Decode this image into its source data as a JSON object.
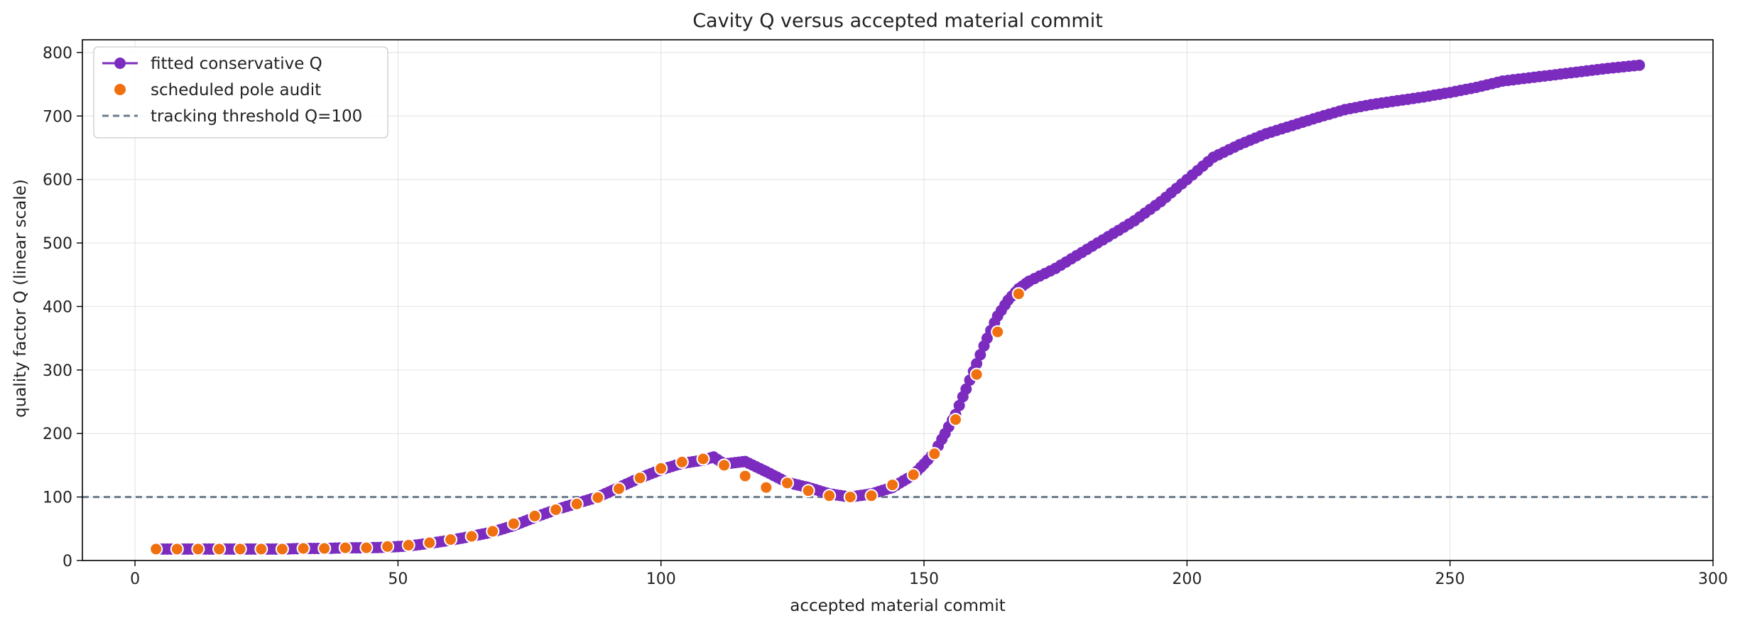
{
  "chart_data": {
    "type": "line",
    "title": "Cavity Q versus accepted material commit",
    "xlabel": "accepted material commit",
    "ylabel": "quality factor Q (linear scale)",
    "xlim": [
      -10,
      300
    ],
    "ylim": [
      0,
      820
    ],
    "x_ticks": [
      0,
      50,
      100,
      150,
      200,
      250,
      300
    ],
    "y_ticks": [
      0,
      100,
      200,
      300,
      400,
      500,
      600,
      700,
      800
    ],
    "grid": true,
    "legend_position": "top-left",
    "colors": {
      "fit": "#7b2cbf",
      "audit": "#f07010",
      "threshold": "#6b7b8c"
    },
    "series": [
      {
        "name": "fitted conservative Q",
        "x": [
          4,
          8,
          12,
          16,
          20,
          24,
          28,
          32,
          36,
          40,
          44,
          48,
          52,
          56,
          60,
          64,
          68,
          72,
          76,
          80,
          84,
          88,
          92,
          96,
          100,
          104,
          108,
          110,
          112,
          116,
          120,
          124,
          128,
          132,
          136,
          140,
          144,
          148,
          150,
          152,
          154,
          156,
          158,
          160,
          162,
          164,
          166,
          168,
          170,
          175,
          180,
          185,
          190,
          195,
          200,
          205,
          210,
          215,
          220,
          225,
          230,
          235,
          240,
          245,
          250,
          255,
          260,
          265,
          270,
          275,
          280,
          286
        ],
        "values": [
          18,
          18,
          18,
          18,
          18,
          18,
          18,
          19,
          19,
          20,
          20,
          21,
          23,
          27,
          32,
          38,
          45,
          55,
          68,
          80,
          90,
          100,
          115,
          130,
          143,
          153,
          158,
          163,
          152,
          156,
          140,
          123,
          115,
          105,
          100,
          105,
          115,
          135,
          152,
          170,
          200,
          230,
          270,
          310,
          350,
          385,
          410,
          428,
          440,
          460,
          485,
          510,
          535,
          565,
          600,
          635,
          655,
          672,
          685,
          698,
          710,
          718,
          724,
          730,
          737,
          745,
          755,
          760,
          765,
          770,
          775,
          780
        ]
      },
      {
        "name": "scheduled pole audit",
        "x": [
          4,
          8,
          12,
          16,
          20,
          24,
          28,
          32,
          36,
          40,
          44,
          48,
          52,
          56,
          60,
          64,
          68,
          72,
          76,
          80,
          84,
          88,
          92,
          96,
          100,
          104,
          108,
          112,
          116,
          120,
          124,
          128,
          132,
          136,
          140,
          144,
          148,
          152,
          156,
          160,
          164,
          168
        ],
        "values": [
          18,
          18,
          18,
          18,
          18,
          18,
          18,
          19,
          19,
          20,
          20,
          22,
          24,
          28,
          33,
          38,
          46,
          58,
          70,
          80,
          89,
          99,
          113,
          130,
          145,
          155,
          160,
          150,
          133,
          115,
          122,
          110,
          102,
          100,
          102,
          119,
          135,
          168,
          222,
          293,
          360,
          420
        ]
      },
      {
        "name": "tracking threshold Q=100",
        "y": 100
      }
    ]
  }
}
